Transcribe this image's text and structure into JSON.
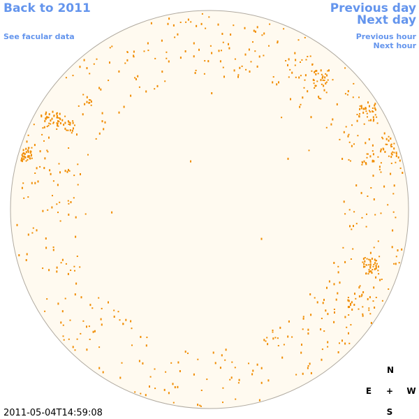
{
  "links": {
    "back": "Back to 2011",
    "facular_data": "See facular data",
    "previous_day": "Previous day",
    "next_day": "Next day",
    "previous_hour": "Previous hour",
    "next_hour": "Next hour"
  },
  "timestamp": "2011-05-04T14:59:08",
  "compass": {
    "north": "N",
    "east": "E",
    "center": "+",
    "west": "W",
    "south": "S"
  }
}
